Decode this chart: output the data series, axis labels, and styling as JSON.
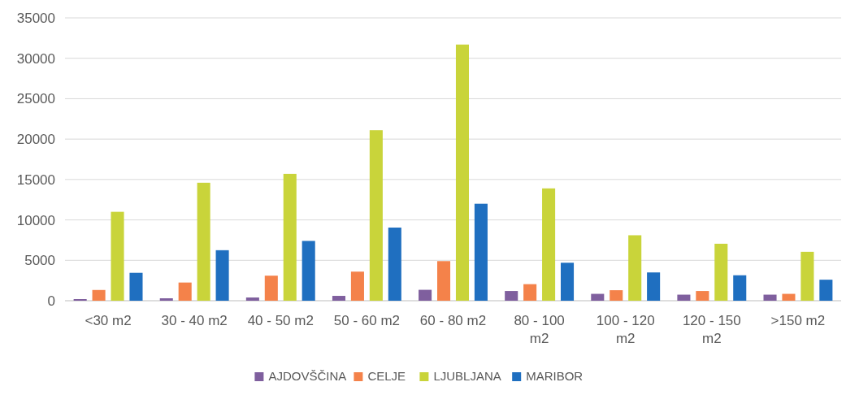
{
  "chart_data": {
    "type": "bar",
    "categories": [
      "<30 m2",
      "30 - 40 m2",
      "40 - 50 m2",
      "50 - 60 m2",
      "60 - 80 m2",
      "80 - 100 m2",
      "100 - 120 m2",
      "120 - 150 m2",
      ">150 m2"
    ],
    "series": [
      {
        "name": "AJDOVŠČINA",
        "color": "#7f5f9e",
        "values": [
          200,
          300,
          400,
          600,
          1350,
          1200,
          850,
          750,
          750
        ]
      },
      {
        "name": "CELJE",
        "color": "#f4824a",
        "values": [
          1330,
          2250,
          3100,
          3600,
          4900,
          2050,
          1300,
          1200,
          850
        ]
      },
      {
        "name": "LJUBLJANA",
        "color": "#c9d43a",
        "values": [
          11000,
          14600,
          15700,
          21100,
          31700,
          13900,
          8100,
          7050,
          6050
        ]
      },
      {
        "name": "MARIBOR",
        "color": "#1f6fc0",
        "values": [
          3450,
          6250,
          7400,
          9050,
          12000,
          4700,
          3500,
          3150,
          2600
        ]
      }
    ],
    "ylim": [
      0,
      35000
    ],
    "yticks": [
      0,
      5000,
      10000,
      15000,
      20000,
      25000,
      30000,
      35000
    ],
    "grid": "y",
    "legend": "bottom"
  }
}
